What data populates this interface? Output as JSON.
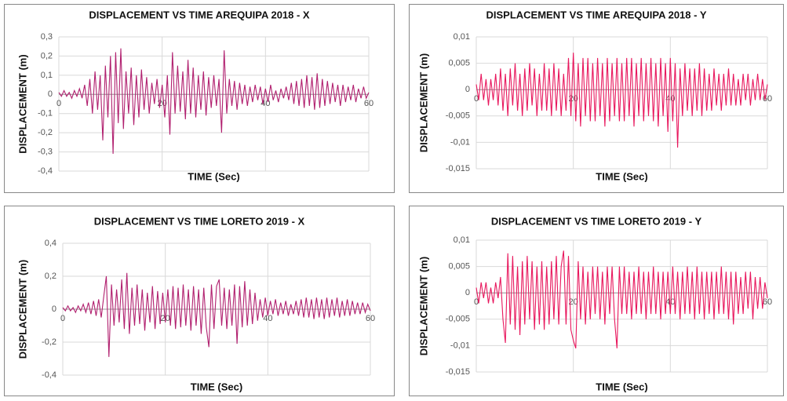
{
  "chart_data": [
    {
      "type": "line",
      "title": "DISPLACEMENT VS TIME AREQUIPA 2018 - X",
      "x_label": "TIME (Sec)",
      "y_label": "DISPLACEMENT (m)",
      "color": "#b1206f",
      "grid": true,
      "xlim": [
        0,
        60
      ],
      "xticks": [
        0,
        20,
        40,
        60
      ],
      "ylim": [
        -0.4,
        0.3
      ],
      "yticks": [
        {
          "value": 0.3,
          "label": "0,3"
        },
        {
          "value": 0.2,
          "label": "0,2"
        },
        {
          "value": 0.1,
          "label": "0,1"
        },
        0,
        {
          "value": -0.1,
          "label": "-0,1"
        },
        {
          "value": -0.2,
          "label": "-0,2"
        },
        {
          "value": -0.3,
          "label": "-0,3"
        },
        {
          "value": -0.4,
          "label": "-0,4"
        }
      ],
      "x": [
        0,
        0.5,
        1,
        1.5,
        2,
        2.5,
        3,
        3.5,
        4,
        4.5,
        5,
        5.5,
        6,
        6.5,
        7,
        7.5,
        8,
        8.5,
        9,
        9.5,
        10,
        10.5,
        11,
        11.5,
        12,
        12.5,
        13,
        13.5,
        14,
        14.5,
        15,
        15.5,
        16,
        16.5,
        17,
        17.5,
        18,
        18.5,
        19,
        19.5,
        20,
        20.5,
        21,
        21.5,
        22,
        22.5,
        23,
        23.5,
        24,
        24.5,
        25,
        25.5,
        26,
        26.5,
        27,
        27.5,
        28,
        28.5,
        29,
        29.5,
        30,
        30.5,
        31,
        31.5,
        32,
        32.5,
        33,
        33.5,
        34,
        34.5,
        35,
        35.5,
        36,
        36.5,
        37,
        37.5,
        38,
        38.5,
        39,
        39.5,
        40,
        40.5,
        41,
        41.5,
        42,
        42.5,
        43,
        43.5,
        44,
        44.5,
        45,
        45.5,
        46,
        46.5,
        47,
        47.5,
        48,
        48.5,
        49,
        49.5,
        50,
        50.5,
        51,
        51.5,
        52,
        52.5,
        53,
        53.5,
        54,
        54.5,
        55,
        55.5,
        56,
        56.5,
        57,
        57.5,
        58,
        58.5,
        59,
        59.5,
        60
      ],
      "values": [
        0.01,
        -0.01,
        0.02,
        -0.01,
        0.01,
        -0.02,
        0.02,
        -0.01,
        0.03,
        -0.02,
        0.05,
        -0.06,
        0.08,
        -0.1,
        0.12,
        -0.08,
        0.1,
        -0.24,
        0.15,
        -0.12,
        0.2,
        -0.31,
        0.22,
        -0.15,
        0.24,
        -0.18,
        0.12,
        -0.1,
        0.14,
        -0.16,
        0.1,
        -0.12,
        0.13,
        -0.08,
        0.09,
        -0.1,
        0.06,
        -0.05,
        0.08,
        -0.07,
        0.05,
        -0.12,
        0.1,
        -0.21,
        0.22,
        -0.1,
        0.15,
        -0.09,
        0.12,
        -0.13,
        0.18,
        -0.1,
        0.14,
        -0.12,
        0.1,
        -0.08,
        0.12,
        -0.11,
        0.09,
        -0.07,
        0.1,
        -0.06,
        0.08,
        -0.2,
        0.23,
        -0.1,
        0.08,
        -0.06,
        0.07,
        -0.08,
        0.06,
        -0.05,
        0.05,
        -0.06,
        0.04,
        -0.04,
        0.05,
        -0.03,
        0.04,
        -0.05,
        0.03,
        -0.04,
        0.05,
        -0.03,
        0.02,
        -0.04,
        0.03,
        -0.02,
        0.04,
        -0.03,
        0.06,
        -0.05,
        0.07,
        -0.06,
        0.08,
        -0.07,
        0.1,
        -0.06,
        0.09,
        -0.08,
        0.11,
        -0.07,
        0.08,
        -0.06,
        0.07,
        -0.05,
        0.06,
        -0.04,
        0.05,
        -0.06,
        0.05,
        -0.04,
        0.04,
        -0.03,
        0.05,
        -0.04,
        0.03,
        -0.02,
        0.04,
        -0.02,
        0.01
      ]
    },
    {
      "type": "line",
      "title": "DISPLACEMENT VS TIME AREQUIPA 2018 - Y",
      "x_label": "TIME (Sec)",
      "y_label": "DISPLACEMENT (m)",
      "color": "#e8175d",
      "grid": true,
      "xlim": [
        0,
        60
      ],
      "xticks": [
        0,
        20,
        40,
        60
      ],
      "ylim": [
        -0.015,
        0.01
      ],
      "yticks": [
        {
          "value": 0.01,
          "label": "0,01"
        },
        {
          "value": 0.005,
          "label": "0,005"
        },
        0,
        {
          "value": -0.005,
          "label": "-0,005"
        },
        {
          "value": -0.01,
          "label": "-0,01"
        },
        {
          "value": -0.015,
          "label": "-0,015"
        }
      ],
      "x": [
        0,
        0.5,
        1,
        1.5,
        2,
        2.5,
        3,
        3.5,
        4,
        4.5,
        5,
        5.5,
        6,
        6.5,
        7,
        7.5,
        8,
        8.5,
        9,
        9.5,
        10,
        10.5,
        11,
        11.5,
        12,
        12.5,
        13,
        13.5,
        14,
        14.5,
        15,
        15.5,
        16,
        16.5,
        17,
        17.5,
        18,
        18.5,
        19,
        19.5,
        20,
        20.5,
        21,
        21.5,
        22,
        22.5,
        23,
        23.5,
        24,
        24.5,
        25,
        25.5,
        26,
        26.5,
        27,
        27.5,
        28,
        28.5,
        29,
        29.5,
        30,
        30.5,
        31,
        31.5,
        32,
        32.5,
        33,
        33.5,
        34,
        34.5,
        35,
        35.5,
        36,
        36.5,
        37,
        37.5,
        38,
        38.5,
        39,
        39.5,
        40,
        40.5,
        41,
        41.5,
        42,
        42.5,
        43,
        43.5,
        44,
        44.5,
        45,
        45.5,
        46,
        46.5,
        47,
        47.5,
        48,
        48.5,
        49,
        49.5,
        50,
        50.5,
        51,
        51.5,
        52,
        52.5,
        53,
        53.5,
        54,
        54.5,
        55,
        55.5,
        56,
        56.5,
        57,
        57.5,
        58,
        58.5,
        59,
        59.5,
        60
      ],
      "values": [
        0.001,
        -0.002,
        0.003,
        -0.002,
        0.002,
        -0.003,
        0.002,
        -0.002,
        0.003,
        -0.003,
        0.004,
        -0.004,
        0.003,
        -0.005,
        0.004,
        -0.003,
        0.005,
        -0.004,
        0.003,
        -0.005,
        0.004,
        -0.004,
        0.005,
        -0.003,
        0.004,
        -0.005,
        0.003,
        -0.004,
        0.005,
        -0.004,
        0.004,
        -0.005,
        0.005,
        -0.004,
        0.004,
        -0.005,
        0.003,
        -0.004,
        0.006,
        -0.005,
        0.007,
        -0.006,
        0.005,
        -0.007,
        0.006,
        -0.005,
        0.006,
        -0.006,
        0.005,
        -0.006,
        0.006,
        -0.005,
        0.005,
        -0.007,
        0.006,
        -0.006,
        0.005,
        -0.005,
        0.006,
        -0.006,
        0.005,
        -0.006,
        0.006,
        -0.005,
        0.006,
        -0.007,
        0.005,
        -0.005,
        0.006,
        -0.006,
        0.005,
        -0.005,
        0.006,
        -0.006,
        0.005,
        -0.007,
        0.006,
        -0.005,
        0.005,
        -0.008,
        0.006,
        -0.006,
        0.005,
        -0.011,
        0.004,
        -0.005,
        0.005,
        -0.004,
        0.004,
        -0.005,
        0.004,
        -0.004,
        0.005,
        -0.005,
        0.004,
        -0.004,
        0.003,
        -0.004,
        0.004,
        -0.003,
        0.003,
        -0.004,
        0.003,
        -0.003,
        0.004,
        -0.003,
        0.003,
        -0.003,
        0.002,
        -0.003,
        0.003,
        -0.002,
        0.003,
        -0.003,
        0.002,
        -0.002,
        0.003,
        -0.002,
        0.002,
        -0.002,
        0.001
      ]
    },
    {
      "type": "line",
      "title": "DISPLACEMENT VS TIME LORETO 2019 - X",
      "x_label": "TIME (Sec)",
      "y_label": "DISPLACEMENT (m)",
      "color": "#b1206f",
      "grid": true,
      "xlim": [
        0,
        60
      ],
      "xticks": [
        0,
        20,
        40,
        60
      ],
      "ylim": [
        -0.4,
        0.4
      ],
      "yticks": [
        {
          "value": 0.4,
          "label": "0,4"
        },
        {
          "value": 0.2,
          "label": "0,2"
        },
        0,
        {
          "value": -0.2,
          "label": "-0,2"
        },
        {
          "value": -0.4,
          "label": "-0,4"
        }
      ],
      "x": [
        0,
        0.5,
        1,
        1.5,
        2,
        2.5,
        3,
        3.5,
        4,
        4.5,
        5,
        5.5,
        6,
        6.5,
        7,
        7.5,
        8,
        8.5,
        9,
        9.5,
        10,
        10.5,
        11,
        11.5,
        12,
        12.5,
        13,
        13.5,
        14,
        14.5,
        15,
        15.5,
        16,
        16.5,
        17,
        17.5,
        18,
        18.5,
        19,
        19.5,
        20,
        20.5,
        21,
        21.5,
        22,
        22.5,
        23,
        23.5,
        24,
        24.5,
        25,
        25.5,
        26,
        26.5,
        27,
        27.5,
        28,
        28.5,
        29,
        29.5,
        30,
        30.5,
        31,
        31.5,
        32,
        32.5,
        33,
        33.5,
        34,
        34.5,
        35,
        35.5,
        36,
        36.5,
        37,
        37.5,
        38,
        38.5,
        39,
        39.5,
        40,
        40.5,
        41,
        41.5,
        42,
        42.5,
        43,
        43.5,
        44,
        44.5,
        45,
        45.5,
        46,
        46.5,
        47,
        47.5,
        48,
        48.5,
        49,
        49.5,
        50,
        50.5,
        51,
        51.5,
        52,
        52.5,
        53,
        53.5,
        54,
        54.5,
        55,
        55.5,
        56,
        56.5,
        57,
        57.5,
        58,
        58.5,
        59,
        59.5,
        60
      ],
      "values": [
        0.01,
        -0.01,
        0.02,
        -0.01,
        0.01,
        -0.02,
        0.02,
        -0.01,
        0.03,
        -0.02,
        0.04,
        -0.03,
        0.05,
        -0.04,
        0.06,
        -0.05,
        0.08,
        0.2,
        -0.29,
        0.15,
        -0.1,
        0.12,
        -0.08,
        0.18,
        -0.12,
        0.22,
        -0.15,
        0.13,
        -0.1,
        0.15,
        -0.09,
        0.12,
        -0.13,
        0.1,
        -0.08,
        0.14,
        -0.12,
        0.11,
        -0.09,
        0.1,
        -0.08,
        0.12,
        -0.1,
        0.14,
        -0.12,
        0.13,
        -0.11,
        0.15,
        -0.1,
        0.12,
        -0.13,
        0.14,
        -0.1,
        0.12,
        -0.15,
        0.13,
        -0.11,
        -0.23,
        0.15,
        -0.12,
        0.14,
        0.18,
        -0.1,
        0.13,
        -0.12,
        0.12,
        -0.1,
        0.15,
        -0.21,
        0.14,
        -0.11,
        0.17,
        -0.1,
        0.12,
        -0.09,
        0.1,
        -0.07,
        0.06,
        -0.05,
        0.07,
        -0.04,
        0.05,
        -0.03,
        0.06,
        -0.04,
        0.04,
        -0.03,
        0.05,
        -0.04,
        0.03,
        -0.03,
        0.05,
        -0.04,
        0.06,
        -0.05,
        0.07,
        -0.05,
        0.06,
        -0.06,
        0.07,
        -0.05,
        0.06,
        -0.06,
        0.07,
        -0.05,
        0.06,
        -0.04,
        0.07,
        -0.05,
        0.05,
        -0.04,
        0.06,
        -0.04,
        0.05,
        -0.03,
        0.04,
        -0.03,
        0.04,
        -0.02,
        0.03,
        -0.01
      ]
    },
    {
      "type": "line",
      "title": "DISPLACEMENT VS TIME LORETO 2019 - Y",
      "x_label": "TIME (Sec)",
      "y_label": "DISPLACEMENT (m)",
      "color": "#e8175d",
      "grid": true,
      "xlim": [
        0,
        60
      ],
      "xticks": [
        0,
        20,
        40,
        60
      ],
      "ylim": [
        -0.015,
        0.01
      ],
      "yticks": [
        {
          "value": 0.01,
          "label": "0,01"
        },
        {
          "value": 0.005,
          "label": "0,005"
        },
        0,
        {
          "value": -0.005,
          "label": "-0,005"
        },
        {
          "value": -0.01,
          "label": "-0,01"
        },
        {
          "value": -0.015,
          "label": "-0,015"
        }
      ],
      "x": [
        0,
        0.5,
        1,
        1.5,
        2,
        2.5,
        3,
        3.5,
        4,
        4.5,
        5,
        5.5,
        6,
        6.5,
        7,
        7.5,
        8,
        8.5,
        9,
        9.5,
        10,
        10.5,
        11,
        11.5,
        12,
        12.5,
        13,
        13.5,
        14,
        14.5,
        15,
        15.5,
        16,
        16.5,
        17,
        17.5,
        18,
        18.5,
        19,
        19.5,
        20,
        20.5,
        21,
        21.5,
        22,
        22.5,
        23,
        23.5,
        24,
        24.5,
        25,
        25.5,
        26,
        26.5,
        27,
        27.5,
        28,
        28.5,
        29,
        29.5,
        30,
        30.5,
        31,
        31.5,
        32,
        32.5,
        33,
        33.5,
        34,
        34.5,
        35,
        35.5,
        36,
        36.5,
        37,
        37.5,
        38,
        38.5,
        39,
        39.5,
        40,
        40.5,
        41,
        41.5,
        42,
        42.5,
        43,
        43.5,
        44,
        44.5,
        45,
        45.5,
        46,
        46.5,
        47,
        47.5,
        48,
        48.5,
        49,
        49.5,
        50,
        50.5,
        51,
        51.5,
        52,
        52.5,
        53,
        53.5,
        54,
        54.5,
        55,
        55.5,
        56,
        56.5,
        57,
        57.5,
        58,
        58.5,
        59,
        59.5,
        60
      ],
      "values": [
        0.001,
        -0.002,
        0.002,
        -0.001,
        0.002,
        -0.002,
        0.001,
        -0.002,
        0.002,
        -0.001,
        0.003,
        -0.005,
        -0.0095,
        0.0075,
        -0.006,
        0.007,
        -0.007,
        0.005,
        -0.008,
        0.006,
        -0.006,
        0.007,
        -0.005,
        0.006,
        -0.007,
        0.005,
        -0.006,
        0.006,
        -0.007,
        0.005,
        -0.006,
        0.006,
        -0.005,
        0.007,
        -0.006,
        0.005,
        0.008,
        -0.006,
        0.007,
        -0.007,
        -0.009,
        -0.0105,
        0.006,
        -0.005,
        0.005,
        -0.006,
        0.004,
        -0.005,
        0.005,
        -0.004,
        0.005,
        -0.005,
        0.004,
        -0.006,
        0.005,
        -0.004,
        0.005,
        -0.005,
        -0.0105,
        0.005,
        -0.004,
        0.005,
        -0.004,
        0.004,
        -0.005,
        0.004,
        -0.004,
        0.005,
        -0.004,
        0.004,
        -0.005,
        0.004,
        -0.004,
        0.005,
        -0.004,
        0.004,
        -0.005,
        0.004,
        -0.004,
        0.004,
        -0.004,
        0.005,
        -0.004,
        0.004,
        -0.005,
        0.004,
        -0.004,
        0.005,
        -0.004,
        0.004,
        -0.005,
        0.005,
        -0.004,
        0.004,
        -0.005,
        0.004,
        -0.004,
        0.004,
        -0.005,
        0.004,
        -0.004,
        0.005,
        -0.004,
        0.004,
        -0.005,
        0.004,
        -0.006,
        0.004,
        -0.004,
        0.003,
        -0.004,
        0.004,
        -0.003,
        0.004,
        -0.005,
        0.003,
        -0.003,
        0.003,
        -0.003,
        0.002,
        -0.001
      ]
    }
  ]
}
